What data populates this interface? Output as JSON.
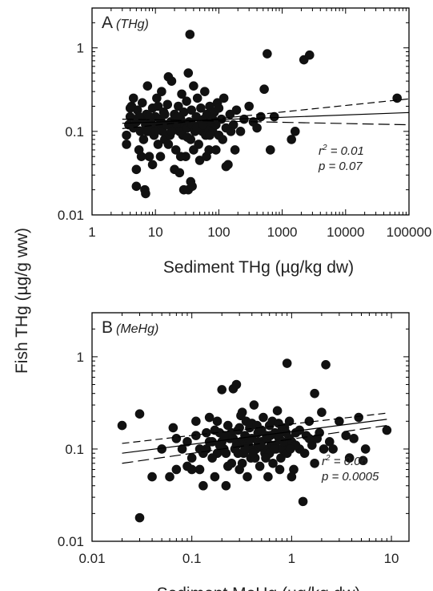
{
  "figure": {
    "shared_ylabel": "Fish THg (µg/g ww)"
  },
  "chart_data": [
    {
      "type": "scatter",
      "panel_letter": "A",
      "panel_tag": "(THg)",
      "xlabel": "Sediment THg (µg/kg dw)",
      "ylabel": "Fish THg (µg/g ww)",
      "xscale": "log",
      "yscale": "log",
      "xlim": [
        1,
        100000
      ],
      "ylim": [
        0.01,
        3
      ],
      "x_ticks": [
        1,
        10,
        100,
        1000,
        10000,
        100000
      ],
      "x_tick_labels": [
        "1",
        "10",
        "100",
        "1000",
        "10000",
        "100000"
      ],
      "y_ticks": [
        0.01,
        0.1,
        1
      ],
      "y_tick_labels": [
        "0.01",
        "0.1",
        "1"
      ],
      "r2_text": "= 0.01",
      "p_text": "p = 0.07",
      "grid": false,
      "marker_color": "#111111",
      "regression": {
        "fit": [
          [
            3,
            0.125
          ],
          [
            100000,
            0.168
          ]
        ],
        "ci_upper": [
          [
            3,
            0.108
          ],
          [
            100000,
            0.245
          ]
        ],
        "ci_lower": [
          [
            3,
            0.14
          ],
          [
            100000,
            0.12
          ]
        ]
      },
      "points": [
        [
          3.5,
          0.09
        ],
        [
          3.8,
          0.12
        ],
        [
          4,
          0.15
        ],
        [
          4.2,
          0.2
        ],
        [
          4.5,
          0.11
        ],
        [
          5,
          0.13
        ],
        [
          5.2,
          0.18
        ],
        [
          5.5,
          0.06
        ],
        [
          5.8,
          0.1
        ],
        [
          6,
          0.14
        ],
        [
          6.2,
          0.22
        ],
        [
          6.5,
          0.08
        ],
        [
          7,
          0.12
        ],
        [
          7.2,
          0.16
        ],
        [
          7.5,
          0.35
        ],
        [
          8,
          0.05
        ],
        [
          8.2,
          0.1
        ],
        [
          8.5,
          0.13
        ],
        [
          9,
          0.19
        ],
        [
          9.2,
          0.11
        ],
        [
          9.5,
          0.09
        ],
        [
          10,
          0.15
        ],
        [
          10.5,
          0.25
        ],
        [
          11,
          0.07
        ],
        [
          11.5,
          0.12
        ],
        [
          12,
          0.14
        ],
        [
          12.5,
          0.3
        ],
        [
          13,
          0.1
        ],
        [
          13.5,
          0.17
        ],
        [
          14,
          0.08
        ],
        [
          15,
          0.12
        ],
        [
          15.5,
          0.21
        ],
        [
          16,
          0.45
        ],
        [
          17,
          0.09
        ],
        [
          17.5,
          0.13
        ],
        [
          18,
          0.4
        ],
        [
          19,
          0.11
        ],
        [
          20,
          0.16
        ],
        [
          21,
          0.06
        ],
        [
          22,
          0.12
        ],
        [
          23,
          0.2
        ],
        [
          24,
          0.1
        ],
        [
          25,
          0.14
        ],
        [
          26,
          0.28
        ],
        [
          27,
          0.09
        ],
        [
          28,
          0.17
        ],
        [
          29,
          0.12
        ],
        [
          30,
          0.05
        ],
        [
          31,
          0.23
        ],
        [
          32,
          0.11
        ],
        [
          33,
          0.5
        ],
        [
          34,
          0.13
        ],
        [
          35,
          1.45
        ],
        [
          36,
          0.08
        ],
        [
          37,
          0.18
        ],
        [
          38,
          0.12
        ],
        [
          40,
          0.35
        ],
        [
          42,
          0.1
        ],
        [
          44,
          0.15
        ],
        [
          46,
          0.25
        ],
        [
          48,
          0.07
        ],
        [
          50,
          0.12
        ],
        [
          52,
          0.19
        ],
        [
          55,
          0.1
        ],
        [
          58,
          0.14
        ],
        [
          60,
          0.3
        ],
        [
          62,
          0.09
        ],
        [
          65,
          0.16
        ],
        [
          68,
          0.11
        ],
        [
          70,
          0.06
        ],
        [
          72,
          0.2
        ],
        [
          75,
          0.13
        ],
        [
          80,
          0.1
        ],
        [
          85,
          0.17
        ],
        [
          90,
          0.12
        ],
        [
          95,
          0.22
        ],
        [
          100,
          0.09
        ],
        [
          110,
          0.14
        ],
        [
          120,
          0.25
        ],
        [
          130,
          0.11
        ],
        [
          140,
          0.04
        ],
        [
          150,
          0.16
        ],
        [
          170,
          0.12
        ],
        [
          190,
          0.18
        ],
        [
          220,
          0.1
        ],
        [
          250,
          0.14
        ],
        [
          300,
          0.2
        ],
        [
          350,
          0.13
        ],
        [
          400,
          0.11
        ],
        [
          460,
          0.15
        ],
        [
          520,
          0.32
        ],
        [
          580,
          0.85
        ],
        [
          650,
          0.06
        ],
        [
          750,
          0.15
        ],
        [
          1400,
          0.08
        ],
        [
          1600,
          0.1
        ],
        [
          2200,
          0.72
        ],
        [
          2700,
          0.82
        ],
        [
          65000,
          0.25
        ],
        [
          3.5,
          0.07
        ],
        [
          4,
          0.19
        ],
        [
          4.5,
          0.25
        ],
        [
          5,
          0.035
        ],
        [
          5.5,
          0.15
        ],
        [
          6,
          0.05
        ],
        [
          6.8,
          0.02
        ],
        [
          7.5,
          0.1
        ],
        [
          8,
          0.15
        ],
        [
          9,
          0.04
        ],
        [
          10,
          0.1
        ],
        [
          11,
          0.2
        ],
        [
          12,
          0.05
        ],
        [
          14,
          0.16
        ],
        [
          16,
          0.07
        ],
        [
          18,
          0.1
        ],
        [
          20,
          0.035
        ],
        [
          22,
          0.15
        ],
        [
          25,
          0.05
        ],
        [
          28,
          0.02
        ],
        [
          32,
          0.085
        ],
        [
          36,
          0.025
        ],
        [
          40,
          0.06
        ],
        [
          45,
          0.11
        ],
        [
          50,
          0.045
        ],
        [
          56,
          0.12
        ],
        [
          64,
          0.05
        ],
        [
          72,
          0.09
        ],
        [
          80,
          0.14
        ],
        [
          90,
          0.06
        ],
        [
          100,
          0.19
        ],
        [
          115,
          0.08
        ],
        [
          130,
          0.038
        ],
        [
          155,
          0.1
        ],
        [
          180,
          0.06
        ],
        [
          5,
          0.022
        ],
        [
          7,
          0.018
        ],
        [
          24,
          0.032
        ],
        [
          33,
          0.02
        ],
        [
          38,
          0.022
        ]
      ]
    },
    {
      "type": "scatter",
      "panel_letter": "B",
      "panel_tag": "(MeHg)",
      "xlabel": "Sediment MeHg (µg/kg dw)",
      "ylabel": "Fish THg (µg/g ww)",
      "xscale": "log",
      "yscale": "log",
      "xlim": [
        0.01,
        15
      ],
      "ylim": [
        0.01,
        3
      ],
      "x_ticks": [
        0.01,
        0.1,
        1,
        10
      ],
      "x_tick_labels": [
        "0.01",
        "0.1",
        "1",
        "10"
      ],
      "y_ticks": [
        0.01,
        0.1,
        1
      ],
      "y_tick_labels": [
        "0.01",
        "0.1",
        "1"
      ],
      "r2_text": "= 0.06",
      "p_text": "p = 0.0005",
      "grid": false,
      "marker_color": "#111111",
      "regression": {
        "fit": [
          [
            0.02,
            0.09
          ],
          [
            9,
            0.21
          ]
        ],
        "ci_upper": [
          [
            0.02,
            0.115
          ],
          [
            9,
            0.245
          ]
        ],
        "ci_lower": [
          [
            0.02,
            0.07
          ],
          [
            9,
            0.18
          ]
        ]
      },
      "points": [
        [
          0.02,
          0.18
        ],
        [
          0.03,
          0.24
        ],
        [
          0.03,
          0.018
        ],
        [
          0.04,
          0.05
        ],
        [
          0.05,
          0.1
        ],
        [
          0.06,
          0.05
        ],
        [
          0.065,
          0.17
        ],
        [
          0.07,
          0.06
        ],
        [
          0.08,
          0.1
        ],
        [
          0.09,
          0.12
        ],
        [
          0.1,
          0.08
        ],
        [
          0.11,
          0.14
        ],
        [
          0.12,
          0.06
        ],
        [
          0.13,
          0.04
        ],
        [
          0.14,
          0.1
        ],
        [
          0.15,
          0.22
        ],
        [
          0.16,
          0.12
        ],
        [
          0.17,
          0.05
        ],
        [
          0.18,
          0.09
        ],
        [
          0.19,
          0.15
        ],
        [
          0.2,
          0.44
        ],
        [
          0.21,
          0.1
        ],
        [
          0.22,
          0.04
        ],
        [
          0.23,
          0.18
        ],
        [
          0.24,
          0.13
        ],
        [
          0.25,
          0.07
        ],
        [
          0.26,
          0.45
        ],
        [
          0.27,
          0.1
        ],
        [
          0.28,
          0.5
        ],
        [
          0.29,
          0.16
        ],
        [
          0.3,
          0.06
        ],
        [
          0.31,
          0.12
        ],
        [
          0.32,
          0.25
        ],
        [
          0.33,
          0.09
        ],
        [
          0.34,
          0.14
        ],
        [
          0.35,
          0.2
        ],
        [
          0.36,
          0.05
        ],
        [
          0.37,
          0.11
        ],
        [
          0.38,
          0.17
        ],
        [
          0.39,
          0.08
        ],
        [
          0.4,
          0.13
        ],
        [
          0.42,
          0.3
        ],
        [
          0.44,
          0.1
        ],
        [
          0.46,
          0.15
        ],
        [
          0.48,
          0.065
        ],
        [
          0.5,
          0.12
        ],
        [
          0.52,
          0.22
        ],
        [
          0.54,
          0.09
        ],
        [
          0.56,
          0.14
        ],
        [
          0.58,
          0.05
        ],
        [
          0.6,
          0.18
        ],
        [
          0.62,
          0.11
        ],
        [
          0.65,
          0.07
        ],
        [
          0.68,
          0.15
        ],
        [
          0.7,
          0.1
        ],
        [
          0.72,
          0.26
        ],
        [
          0.75,
          0.13
        ],
        [
          0.78,
          0.08
        ],
        [
          0.8,
          0.16
        ],
        [
          0.85,
          0.11
        ],
        [
          0.9,
          0.85
        ],
        [
          0.95,
          0.2
        ],
        [
          1,
          0.12
        ],
        [
          1.05,
          0.06
        ],
        [
          1.1,
          0.15
        ],
        [
          1.2,
          0.1
        ],
        [
          1.3,
          0.027
        ],
        [
          1.4,
          0.14
        ],
        [
          1.5,
          0.2
        ],
        [
          1.6,
          0.11
        ],
        [
          1.7,
          0.4
        ],
        [
          1.8,
          0.13
        ],
        [
          2,
          0.25
        ],
        [
          2.2,
          0.82
        ],
        [
          2.4,
          0.12
        ],
        [
          2.6,
          0.1
        ],
        [
          3,
          0.2
        ],
        [
          3.5,
          0.14
        ],
        [
          3.8,
          0.08
        ],
        [
          4.2,
          0.13
        ],
        [
          4.7,
          0.22
        ],
        [
          5.2,
          0.075
        ],
        [
          5.5,
          0.1
        ],
        [
          9,
          0.16
        ],
        [
          0.1,
          0.06
        ],
        [
          0.12,
          0.1
        ],
        [
          0.14,
          0.15
        ],
        [
          0.16,
          0.08
        ],
        [
          0.18,
          0.2
        ],
        [
          0.2,
          0.12
        ],
        [
          0.22,
          0.09
        ],
        [
          0.25,
          0.15
        ],
        [
          0.28,
          0.11
        ],
        [
          0.3,
          0.17
        ],
        [
          0.32,
          0.07
        ],
        [
          0.35,
          0.13
        ],
        [
          0.38,
          0.1
        ],
        [
          0.4,
          0.19
        ],
        [
          0.43,
          0.08
        ],
        [
          0.46,
          0.12
        ],
        [
          0.5,
          0.16
        ],
        [
          0.53,
          0.1
        ],
        [
          0.57,
          0.13
        ],
        [
          0.6,
          0.09
        ],
        [
          0.64,
          0.2
        ],
        [
          0.68,
          0.11
        ],
        [
          0.72,
          0.14
        ],
        [
          0.76,
          0.06
        ],
        [
          0.8,
          0.1
        ],
        [
          0.85,
          0.17
        ],
        [
          0.9,
          0.09
        ],
        [
          0.95,
          0.13
        ],
        [
          1,
          0.05
        ],
        [
          1.1,
          0.11
        ],
        [
          1.2,
          0.16
        ],
        [
          1.35,
          0.09
        ],
        [
          1.5,
          0.13
        ],
        [
          1.7,
          0.07
        ],
        [
          1.9,
          0.15
        ],
        [
          2.1,
          0.1
        ],
        [
          0.07,
          0.13
        ],
        [
          0.09,
          0.065
        ],
        [
          0.11,
          0.2
        ],
        [
          0.13,
          0.09
        ],
        [
          0.15,
          0.12
        ],
        [
          0.17,
          0.16
        ],
        [
          0.19,
          0.11
        ],
        [
          0.21,
          0.14
        ],
        [
          0.23,
          0.065
        ],
        [
          0.26,
          0.13
        ],
        [
          0.29,
          0.09
        ],
        [
          0.31,
          0.23
        ],
        [
          0.34,
          0.1
        ],
        [
          0.37,
          0.13
        ],
        [
          0.41,
          0.09
        ],
        [
          0.45,
          0.18
        ],
        [
          0.49,
          0.11
        ],
        [
          0.55,
          0.08
        ],
        [
          0.61,
          0.14
        ],
        [
          0.67,
          0.1
        ],
        [
          0.74,
          0.19
        ],
        [
          0.82,
          0.12
        ],
        [
          0.88,
          0.15
        ],
        [
          0.97,
          0.1
        ]
      ]
    }
  ]
}
